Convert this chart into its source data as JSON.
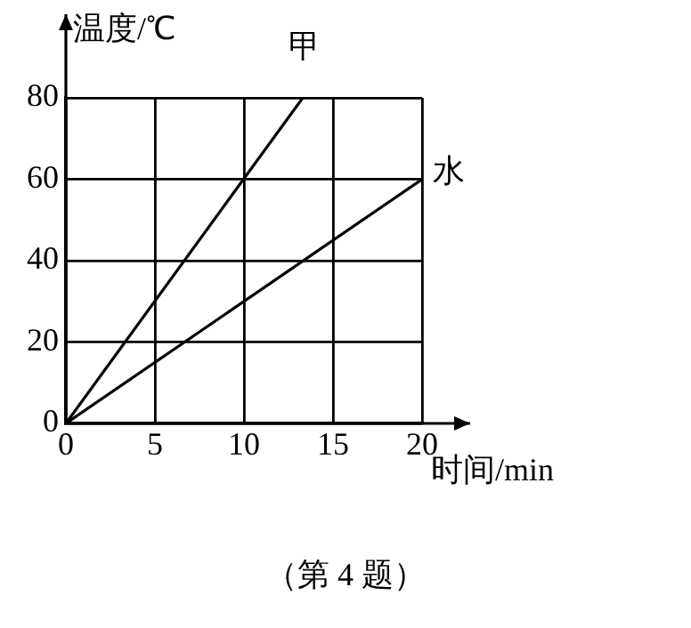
{
  "chart_data": {
    "type": "line",
    "xlabel": "时间/min",
    "ylabel": "温度/℃",
    "annotations": [
      "（第 4 题）"
    ],
    "xlim": [
      0,
      20
    ],
    "ylim": [
      0,
      80
    ],
    "xticks": [
      0,
      5,
      10,
      15,
      20
    ],
    "yticks": [
      0,
      20,
      40,
      60,
      80
    ],
    "grid": true,
    "legend": false,
    "marker": "none",
    "line_style": "solid",
    "series": [
      {
        "name": "甲",
        "color": "#000000",
        "x": [
          0,
          13.3
        ],
        "values": [
          0,
          80
        ]
      },
      {
        "name": "水",
        "color": "#000000",
        "x": [
          0,
          20
        ],
        "values": [
          0,
          60
        ]
      }
    ]
  }
}
